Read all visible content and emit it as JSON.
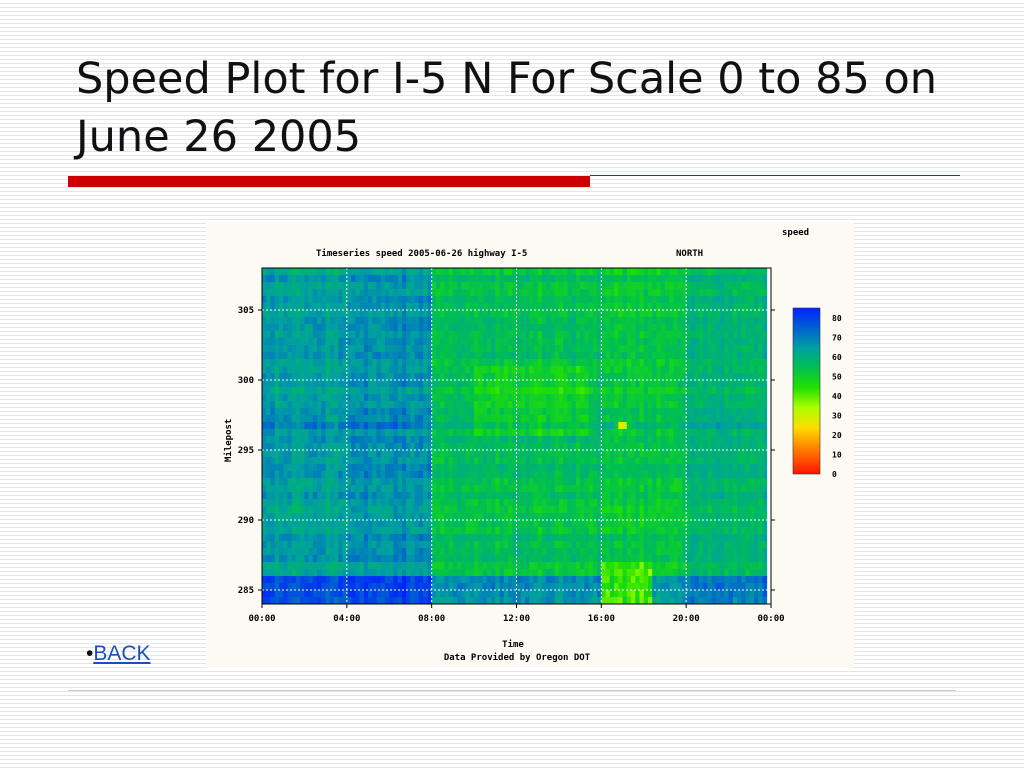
{
  "slide": {
    "title": "Speed Plot for I-5 N For Scale 0 to 85 on June 26 2005",
    "back_link": "BACK",
    "bullet": "•"
  },
  "chart_data": {
    "type": "heatmap",
    "title": "Timeseries speed 2005-06-26 highway I-5",
    "direction": "NORTH",
    "colorbar_title": "speed",
    "xlabel": "Time",
    "credit": "Data Provided by Oregon DOT",
    "ylabel": "Milepost",
    "x_ticks": [
      "00:00",
      "04:00",
      "08:00",
      "12:00",
      "16:00",
      "20:00",
      "00:00"
    ],
    "y_ticks": [
      "305",
      "300",
      "295",
      "290",
      "285"
    ],
    "y_tick_values": [
      305,
      300,
      295,
      290,
      285
    ],
    "ylim": [
      284,
      308
    ],
    "xlim_hours": [
      0,
      24
    ],
    "colorbar_ticks": [
      "80",
      "70",
      "60",
      "50",
      "40",
      "30",
      "20",
      "10",
      "0"
    ],
    "colorbar_values": [
      80,
      70,
      60,
      50,
      40,
      30,
      20,
      10,
      0
    ],
    "scale_range": [
      0,
      85
    ],
    "grid": true,
    "colors": {
      "low": "#ff2000",
      "mid": "#33dd00",
      "high": "#0033ff"
    }
  }
}
